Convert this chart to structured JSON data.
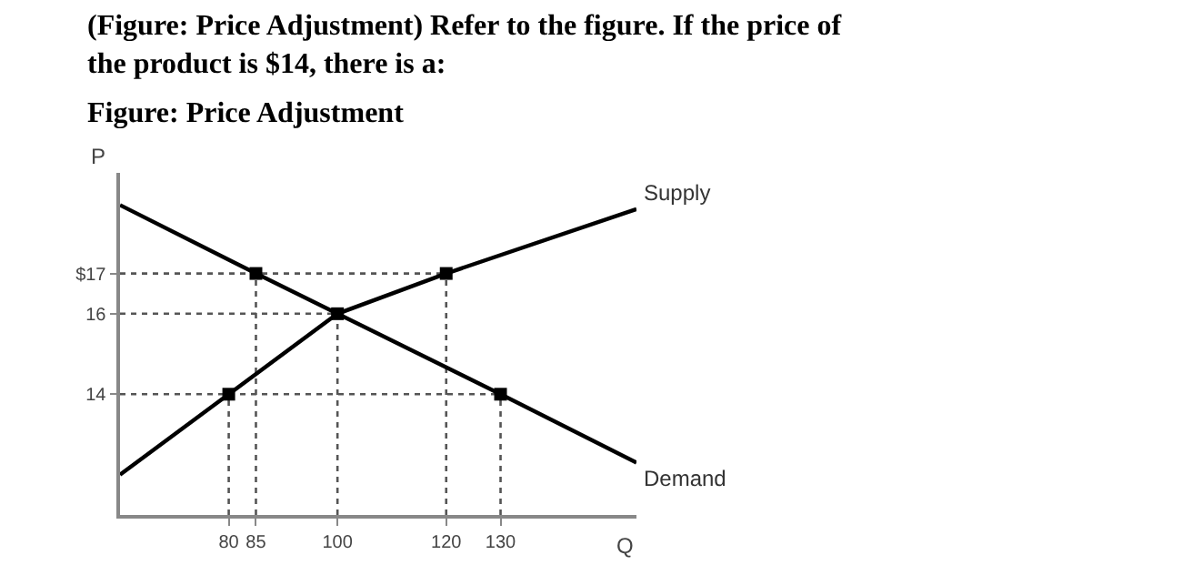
{
  "chart_data": {
    "type": "line",
    "title": "(Figure: Price Adjustment) Refer to the figure. If the price of\nthe product is $14, there is a:",
    "subtitle": "Figure: Price Adjustment",
    "xlabel": "Q",
    "ylabel": "P",
    "xlim": [
      60,
      155
    ],
    "ylim": [
      11,
      19.5
    ],
    "xticks": [
      80,
      85,
      100,
      120,
      130
    ],
    "yticks": [
      {
        "value": 17,
        "label": "$17"
      },
      16,
      14
    ],
    "series": [
      {
        "name": "Supply",
        "color": "#000000",
        "x": [
          60,
          80,
          100,
          120,
          155
        ],
        "values": [
          12,
          14,
          16,
          17,
          18.6
        ],
        "marker": "none"
      },
      {
        "name": "Demand",
        "color": "#000000",
        "x": [
          60,
          85,
          100,
          130,
          155
        ],
        "values": [
          18.7,
          17,
          16,
          14,
          12.3
        ],
        "marker": "none"
      },
      {
        "type": "scatter",
        "color": "#000000",
        "x": [
          80,
          85,
          100,
          120,
          130
        ],
        "values": [
          14,
          17,
          16,
          17,
          14
        ],
        "marker": "square"
      }
    ],
    "ref_lines": [
      {
        "axis": "y",
        "value": 17,
        "label": null,
        "line_style": "dotted"
      },
      {
        "axis": "y",
        "value": 16,
        "label": null,
        "line_style": "dotted"
      },
      {
        "axis": "y",
        "value": 14,
        "label": null,
        "line_style": "dotted"
      },
      {
        "axis": "x",
        "value": 80,
        "label": null,
        "line_style": "dotted"
      },
      {
        "axis": "x",
        "value": 85,
        "label": null,
        "line_style": "dotted"
      },
      {
        "axis": "x",
        "value": 100,
        "label": null,
        "line_style": "dotted"
      },
      {
        "axis": "x",
        "value": 120,
        "label": null,
        "line_style": "dotted"
      },
      {
        "axis": "x",
        "value": 130,
        "label": null,
        "line_style": "dotted"
      }
    ],
    "grid": false
  }
}
